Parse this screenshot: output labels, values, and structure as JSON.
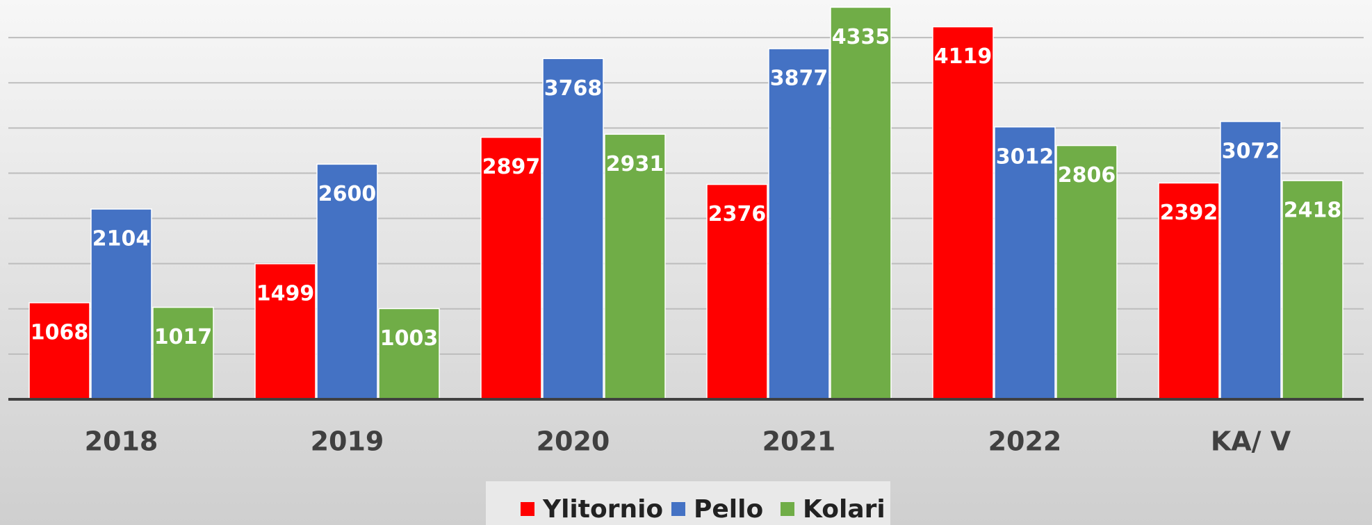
{
  "chart_data": {
    "type": "bar",
    "categories": [
      "2018",
      "2019",
      "2020",
      "2021",
      "2022",
      "KA/ V"
    ],
    "series": [
      {
        "name": "Ylitornio",
        "color": "#ff0000",
        "values": [
          1068,
          1499,
          2897,
          2376,
          4119,
          2392
        ]
      },
      {
        "name": "Pello",
        "color": "#4472c4",
        "values": [
          2104,
          2600,
          3768,
          3877,
          3012,
          3072
        ]
      },
      {
        "name": "Kolari",
        "color": "#70ad47",
        "values": [
          1017,
          1003,
          2931,
          4335,
          2806,
          2418
        ]
      }
    ],
    "ylim": [
      0,
      4400
    ],
    "yticks": [
      0,
      500,
      1000,
      1500,
      2000,
      2500,
      3000,
      3500,
      4000
    ],
    "grid": true,
    "legend": "bottom"
  }
}
